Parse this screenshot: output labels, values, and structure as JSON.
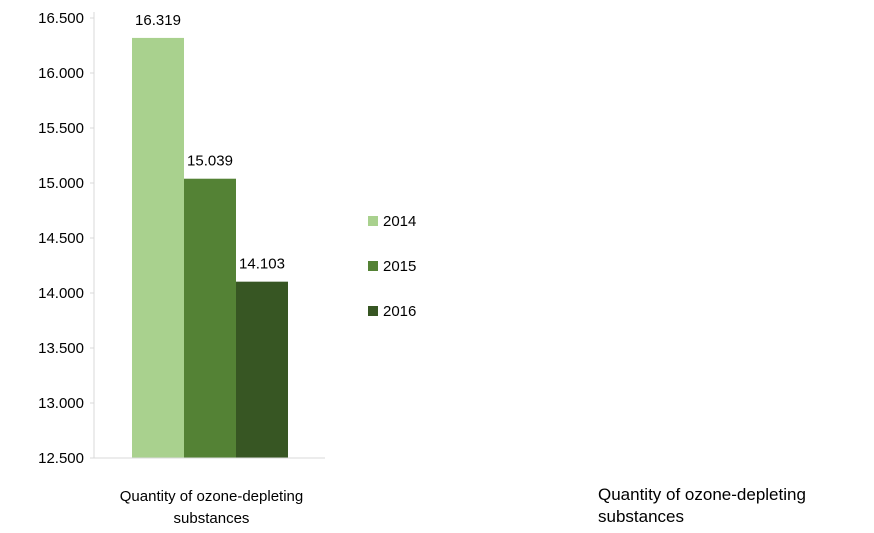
{
  "chart_data": {
    "type": "bar",
    "categories": [
      "Quantity of ozone-depleting substances"
    ],
    "series": [
      {
        "name": "2014",
        "values": [
          16319
        ],
        "color": "#a9d18e",
        "label": "16.319"
      },
      {
        "name": "2015",
        "values": [
          15039
        ],
        "color": "#548235",
        "label": "15.039"
      },
      {
        "name": "2016",
        "values": [
          14103
        ],
        "color": "#375623",
        "label": "14.103"
      }
    ],
    "ylim": [
      12500,
      16500
    ],
    "yticks": [
      {
        "value": 12500,
        "label": "12.500"
      },
      {
        "value": 13000,
        "label": "13.000"
      },
      {
        "value": 13500,
        "label": "13.500"
      },
      {
        "value": 14000,
        "label": "14.000"
      },
      {
        "value": 14500,
        "label": "14.500"
      },
      {
        "value": 15000,
        "label": "15.000"
      },
      {
        "value": 15500,
        "label": "15.500"
      },
      {
        "value": 16000,
        "label": "16.000"
      },
      {
        "value": 16500,
        "label": "16.500"
      }
    ],
    "category_label_lines": [
      "Quantity of ozone-depleting",
      "substances"
    ],
    "legend_position": "right",
    "grid": false,
    "axis_color": "#d9d9d9"
  },
  "side_caption": "Quantity of ozone-depleting substances"
}
